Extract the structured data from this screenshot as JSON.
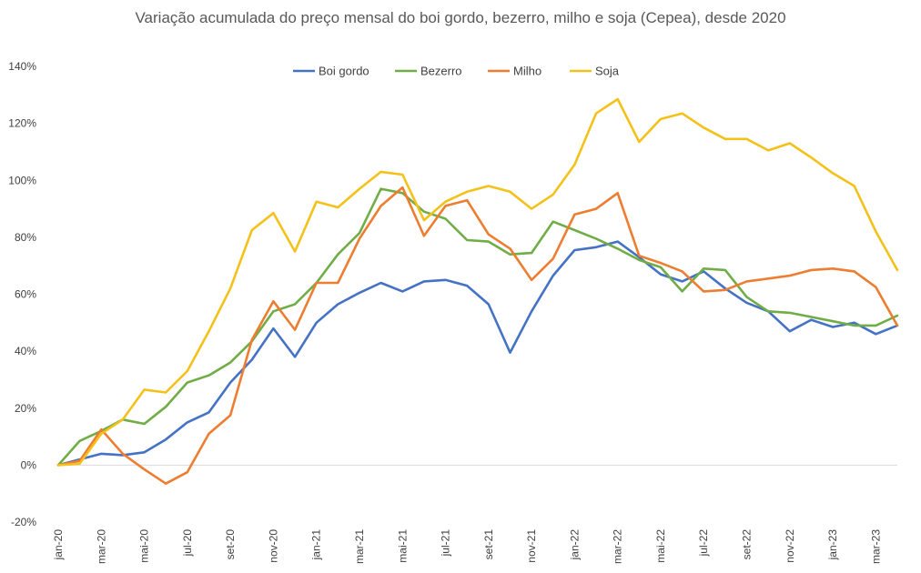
{
  "chart_data": {
    "type": "line",
    "title": "Variação acumulada do preço mensal  do boi gordo, bezerro, milho e soja (Cepea), desde 2020",
    "xlabel": "",
    "ylabel": "",
    "ylim": [
      -20,
      140
    ],
    "yticks": [
      "-20%",
      "0%",
      "20%",
      "40%",
      "60%",
      "80%",
      "100%",
      "120%",
      "140%"
    ],
    "ytick_values": [
      -20,
      0,
      20,
      40,
      60,
      80,
      100,
      120,
      140
    ],
    "grid": false,
    "legend": "top-center",
    "x": [
      "jan-20",
      "fev-20",
      "mar-20",
      "abr-20",
      "mai-20",
      "jun-20",
      "jul-20",
      "ago-20",
      "set-20",
      "out-20",
      "nov-20",
      "dez-20",
      "jan-21",
      "fev-21",
      "mar-21",
      "abr-21",
      "mai-21",
      "jun-21",
      "jul-21",
      "ago-21",
      "set-21",
      "out-21",
      "nov-21",
      "dez-21",
      "jan-22",
      "fev-22",
      "mar-22",
      "abr-22",
      "mai-22",
      "jun-22",
      "jul-22",
      "ago-22",
      "set-22",
      "out-22",
      "nov-22",
      "dez-22",
      "jan-23",
      "fev-23",
      "mar-23",
      "abr-23"
    ],
    "xtick_labels": [
      "jan-20",
      "mar-20",
      "mai-20",
      "jul-20",
      "set-20",
      "nov-20",
      "jan-21",
      "mar-21",
      "mai-21",
      "jul-21",
      "set-21",
      "nov-21",
      "jan-22",
      "mar-22",
      "mai-22",
      "jul-22",
      "set-22",
      "nov-22",
      "jan-23",
      "mar-23"
    ],
    "series": [
      {
        "name": "Boi gordo",
        "color": "#4472c4",
        "values": [
          0,
          2,
          4,
          3.5,
          4.5,
          9,
          15,
          18.5,
          29,
          37,
          48,
          38,
          50,
          56.5,
          60.5,
          64,
          61,
          64.5,
          65,
          63,
          56.5,
          39.5,
          54,
          66.5,
          75.5,
          76.5,
          78.5,
          73,
          67,
          64.5,
          68,
          62,
          57,
          54,
          47,
          51,
          48.5,
          50,
          46,
          49
        ]
      },
      {
        "name": "Bezerro",
        "color": "#70ad47",
        "values": [
          0,
          8.5,
          12,
          16,
          14.5,
          20.5,
          29,
          31.5,
          36,
          43.5,
          54,
          56.5,
          64,
          74,
          81.5,
          97,
          95.5,
          89,
          86.5,
          79,
          78.5,
          74,
          74.5,
          85.5,
          82.5,
          79.5,
          76,
          72,
          69.5,
          61,
          69,
          68.5,
          59,
          54,
          53.5,
          52,
          50.5,
          49,
          49,
          52.5
        ]
      },
      {
        "name": "Milho",
        "color": "#ed7d31",
        "values": [
          0,
          1.5,
          12.5,
          4,
          -1.5,
          -6.5,
          -2.5,
          11,
          17.5,
          44,
          57.5,
          47.5,
          64,
          64,
          79.5,
          91,
          97.5,
          80.5,
          91,
          93,
          81,
          76,
          65,
          72.5,
          88,
          90,
          95.5,
          73.5,
          71,
          68,
          61,
          61.5,
          64.5,
          65.5,
          66.5,
          68.5,
          69,
          68,
          62.5,
          49
        ]
      },
      {
        "name": "Soja",
        "color": "#f4c11b",
        "values": [
          0,
          0.5,
          11,
          16,
          26.5,
          25.5,
          33,
          47,
          62,
          82.5,
          88.5,
          75,
          92.5,
          90.5,
          97,
          103,
          102,
          86,
          92.5,
          96,
          98,
          96,
          90,
          95,
          105.5,
          123.5,
          128.5,
          113.5,
          121.5,
          123.5,
          118.5,
          114.5,
          114.5,
          110.5,
          113,
          108,
          102.5,
          98,
          82,
          68.5
        ]
      }
    ]
  }
}
